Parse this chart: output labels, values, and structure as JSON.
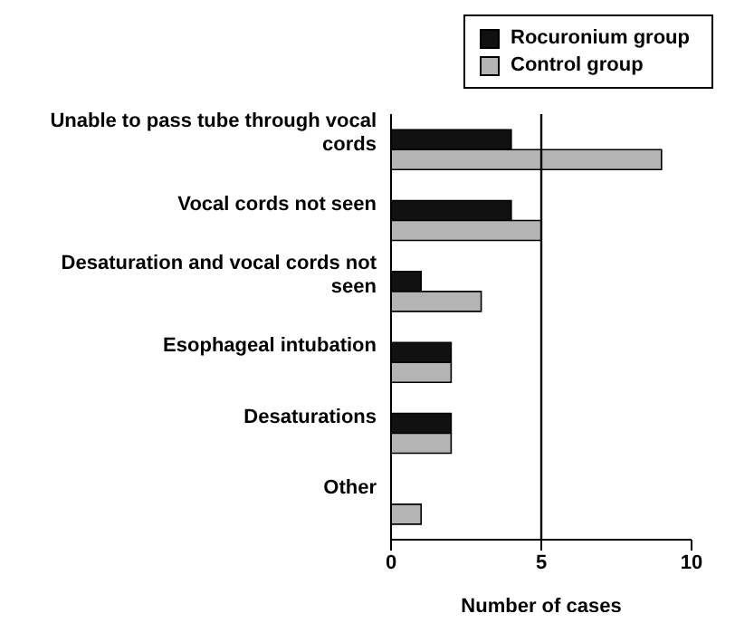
{
  "chart_data": {
    "type": "bar",
    "orientation": "horizontal",
    "xlabel": "Number of cases",
    "categories": [
      "Unable to pass tube through vocal cords",
      "Vocal cords not seen",
      "Desaturation and vocal cords not seen",
      "Esophageal intubation",
      "Desaturations",
      "Other"
    ],
    "series": [
      {
        "name": "Rocuronium group",
        "color": "#111111",
        "values": [
          4,
          4,
          1,
          2,
          2,
          0
        ]
      },
      {
        "name": "Control group",
        "color": "#b4b4b4",
        "values": [
          9,
          5,
          3,
          2,
          2,
          1
        ]
      }
    ],
    "xlim": [
      0,
      10
    ],
    "xticks": [
      0,
      5,
      10
    ],
    "ref_lines": [
      {
        "axis": "x",
        "value": 5,
        "color": "#000000"
      }
    ],
    "legend": "top right"
  }
}
